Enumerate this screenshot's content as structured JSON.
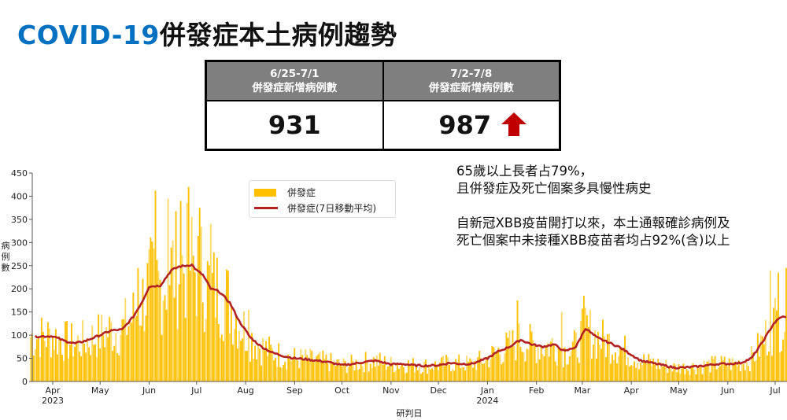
{
  "title": {
    "en": "COVID-19",
    "zh": "併發症本土病例趨勢"
  },
  "summary_table": {
    "columns": [
      {
        "period": "6/25-7/1",
        "label": "併發症新增病例數",
        "value": "931",
        "trend": null
      },
      {
        "period": "7/2-7/8",
        "label": "併發症新增病例數",
        "value": "987",
        "trend": "up-arrow-icon"
      }
    ],
    "trend_color": "#c00000"
  },
  "notes": [
    [
      "65歲以上長者占79%，",
      "且併發症及死亡個案多具慢性病史"
    ],
    [
      "自新冠XBB疫苗開打以來，本土通報確診病例及",
      "死亡個案中未接種XBB疫苗者均占92%(含)以上"
    ]
  ],
  "legend": {
    "bar_label": "併發症",
    "line_label": "併發症(7日移動平均)"
  },
  "chart_data": {
    "type": "bar",
    "title": "",
    "xlabel": "研判日",
    "ylabel": "病例數",
    "ylim": [
      0,
      450
    ],
    "yticks": [
      0,
      50,
      100,
      150,
      200,
      250,
      300,
      350,
      400,
      450
    ],
    "xticks": [
      {
        "label": "Apr",
        "sub": "2023",
        "date": "2023-04-01"
      },
      {
        "label": "May",
        "sub": "",
        "date": "2023-05-01"
      },
      {
        "label": "Jun",
        "sub": "",
        "date": "2023-06-01"
      },
      {
        "label": "Jul",
        "sub": "",
        "date": "2023-07-01"
      },
      {
        "label": "Aug",
        "sub": "",
        "date": "2023-08-01"
      },
      {
        "label": "Sep",
        "sub": "",
        "date": "2023-09-01"
      },
      {
        "label": "Oct",
        "sub": "",
        "date": "2023-10-01"
      },
      {
        "label": "Nov",
        "sub": "",
        "date": "2023-11-01"
      },
      {
        "label": "Dec",
        "sub": "",
        "date": "2023-12-01"
      },
      {
        "label": "Jan",
        "sub": "2024",
        "date": "2024-01-01"
      },
      {
        "label": "Feb",
        "sub": "",
        "date": "2024-02-01"
      },
      {
        "label": "Mar",
        "sub": "",
        "date": "2024-03-01"
      },
      {
        "label": "Apr",
        "sub": "",
        "date": "2024-04-01"
      },
      {
        "label": "May",
        "sub": "",
        "date": "2024-05-01"
      },
      {
        "label": "Jun",
        "sub": "",
        "date": "2024-06-01"
      },
      {
        "label": "Jul",
        "sub": "",
        "date": "2024-07-01"
      }
    ],
    "x_range": [
      "2023-03-18",
      "2024-07-08"
    ],
    "grid": false,
    "legend_position": "upper-left-center",
    "bar_color": "#ffc000",
    "bar_color_light": "#ffd966",
    "line_color": "#b22222",
    "series": [
      {
        "name": "併發症(7日移動平均)",
        "type": "line",
        "points": [
          [
            "2023-03-21",
            97
          ],
          [
            "2023-04-01",
            98
          ],
          [
            "2023-04-08",
            88
          ],
          [
            "2023-04-15",
            82
          ],
          [
            "2023-04-22",
            88
          ],
          [
            "2023-05-01",
            100
          ],
          [
            "2023-05-08",
            110
          ],
          [
            "2023-05-15",
            112
          ],
          [
            "2023-05-22",
            140
          ],
          [
            "2023-05-28",
            175
          ],
          [
            "2023-06-01",
            205
          ],
          [
            "2023-06-08",
            207
          ],
          [
            "2023-06-15",
            240
          ],
          [
            "2023-06-20",
            248
          ],
          [
            "2023-06-28",
            252
          ],
          [
            "2023-07-01",
            240
          ],
          [
            "2023-07-05",
            230
          ],
          [
            "2023-07-10",
            200
          ],
          [
            "2023-07-15",
            195
          ],
          [
            "2023-07-22",
            170
          ],
          [
            "2023-07-28",
            130
          ],
          [
            "2023-08-04",
            95
          ],
          [
            "2023-08-11",
            75
          ],
          [
            "2023-08-18",
            62
          ],
          [
            "2023-08-25",
            55
          ],
          [
            "2023-09-01",
            50
          ],
          [
            "2023-09-08",
            48
          ],
          [
            "2023-09-15",
            45
          ],
          [
            "2023-09-22",
            42
          ],
          [
            "2023-10-01",
            35
          ],
          [
            "2023-10-08",
            38
          ],
          [
            "2023-10-15",
            42
          ],
          [
            "2023-10-22",
            45
          ],
          [
            "2023-11-01",
            37
          ],
          [
            "2023-11-08",
            38
          ],
          [
            "2023-11-15",
            35
          ],
          [
            "2023-11-22",
            34
          ],
          [
            "2023-12-01",
            35
          ],
          [
            "2023-12-08",
            40
          ],
          [
            "2023-12-15",
            38
          ],
          [
            "2023-12-22",
            38
          ],
          [
            "2024-01-01",
            50
          ],
          [
            "2024-01-08",
            65
          ],
          [
            "2024-01-15",
            75
          ],
          [
            "2024-01-22",
            90
          ],
          [
            "2024-01-29",
            80
          ],
          [
            "2024-02-05",
            75
          ],
          [
            "2024-02-12",
            80
          ],
          [
            "2024-02-19",
            65
          ],
          [
            "2024-02-26",
            75
          ],
          [
            "2024-03-03",
            115
          ],
          [
            "2024-03-10",
            95
          ],
          [
            "2024-03-17",
            85
          ],
          [
            "2024-03-24",
            75
          ],
          [
            "2024-03-31",
            60
          ],
          [
            "2024-04-07",
            45
          ],
          [
            "2024-04-14",
            40
          ],
          [
            "2024-04-21",
            35
          ],
          [
            "2024-04-28",
            30
          ],
          [
            "2024-05-05",
            30
          ],
          [
            "2024-05-12",
            32
          ],
          [
            "2024-05-19",
            35
          ],
          [
            "2024-05-26",
            38
          ],
          [
            "2024-06-02",
            38
          ],
          [
            "2024-06-09",
            40
          ],
          [
            "2024-06-16",
            50
          ],
          [
            "2024-06-23",
            85
          ],
          [
            "2024-06-30",
            125
          ],
          [
            "2024-07-05",
            140
          ],
          [
            "2024-07-08",
            138
          ]
        ]
      },
      {
        "name": "併發症",
        "type": "bar",
        "note": "daily counts fluctuate around the moving average; notable daily peaks listed",
        "peaks": [
          [
            "2023-06-05",
            412
          ],
          [
            "2023-06-13",
            395
          ],
          [
            "2023-06-21",
            390
          ],
          [
            "2023-06-26",
            420
          ],
          [
            "2023-07-03",
            375
          ],
          [
            "2023-07-10",
            340
          ],
          [
            "2023-05-25",
            245
          ],
          [
            "2023-08-03",
            155
          ],
          [
            "2024-01-20",
            175
          ],
          [
            "2024-02-17",
            150
          ],
          [
            "2024-03-02",
            185
          ],
          [
            "2024-06-28",
            240
          ],
          [
            "2024-07-03",
            235
          ],
          [
            "2024-07-08",
            245
          ]
        ]
      }
    ]
  }
}
